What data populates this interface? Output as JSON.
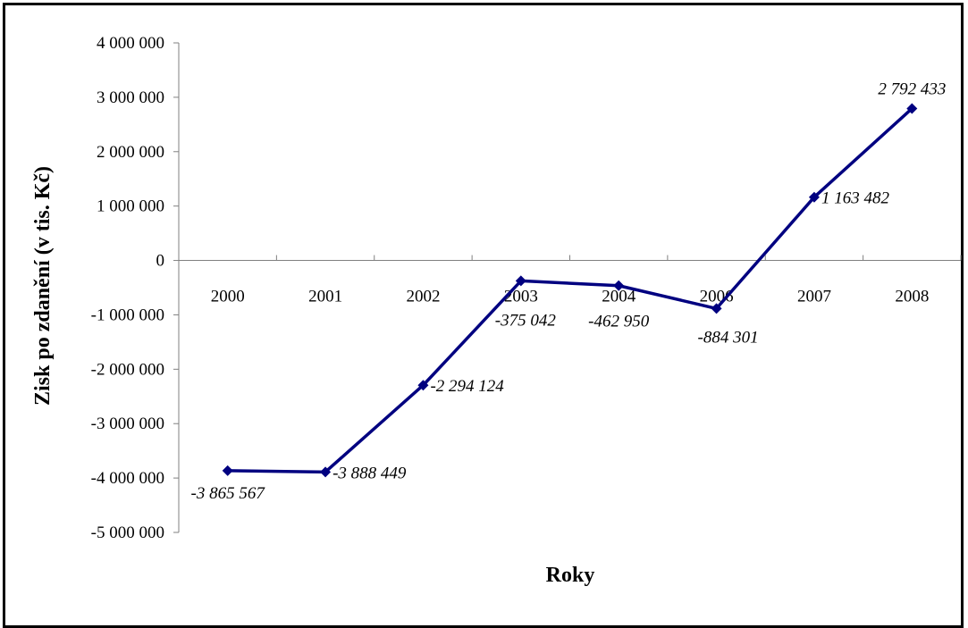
{
  "chart_data": {
    "type": "line",
    "title": "",
    "xlabel": "Roky",
    "ylabel": "Zisk po zdanění (v tis. Kč)",
    "categories": [
      "2000",
      "2001",
      "2002",
      "2003",
      "2004",
      "2006",
      "2007",
      "2008"
    ],
    "series": [
      {
        "values": [
          -3865567,
          -3888449,
          -2294124,
          -375042,
          -462950,
          -884301,
          1163482,
          2792433
        ],
        "labels": [
          "-3 865 567",
          "-3 888 449",
          "-2 294 124",
          "-375 042",
          "-462 950",
          "-884 301",
          "1 163 482",
          "2 792 433"
        ],
        "color": "#000080"
      }
    ],
    "ylim": [
      -5000000,
      4000000
    ],
    "yticks": [
      {
        "value": 4000000,
        "label": "4 000 000"
      },
      {
        "value": 3000000,
        "label": "3 000 000"
      },
      {
        "value": 2000000,
        "label": "2 000 000"
      },
      {
        "value": 1000000,
        "label": "1 000 000"
      },
      {
        "value": 0,
        "label": "0"
      },
      {
        "value": -1000000,
        "label": "-1 000 000"
      },
      {
        "value": -2000000,
        "label": "-2 000 000"
      },
      {
        "value": -3000000,
        "label": "-3 000 000"
      },
      {
        "value": -4000000,
        "label": "-4 000 000"
      },
      {
        "value": -5000000,
        "label": "-5 000 000"
      }
    ],
    "grid": false,
    "legend": "none",
    "marker": "diamond"
  }
}
